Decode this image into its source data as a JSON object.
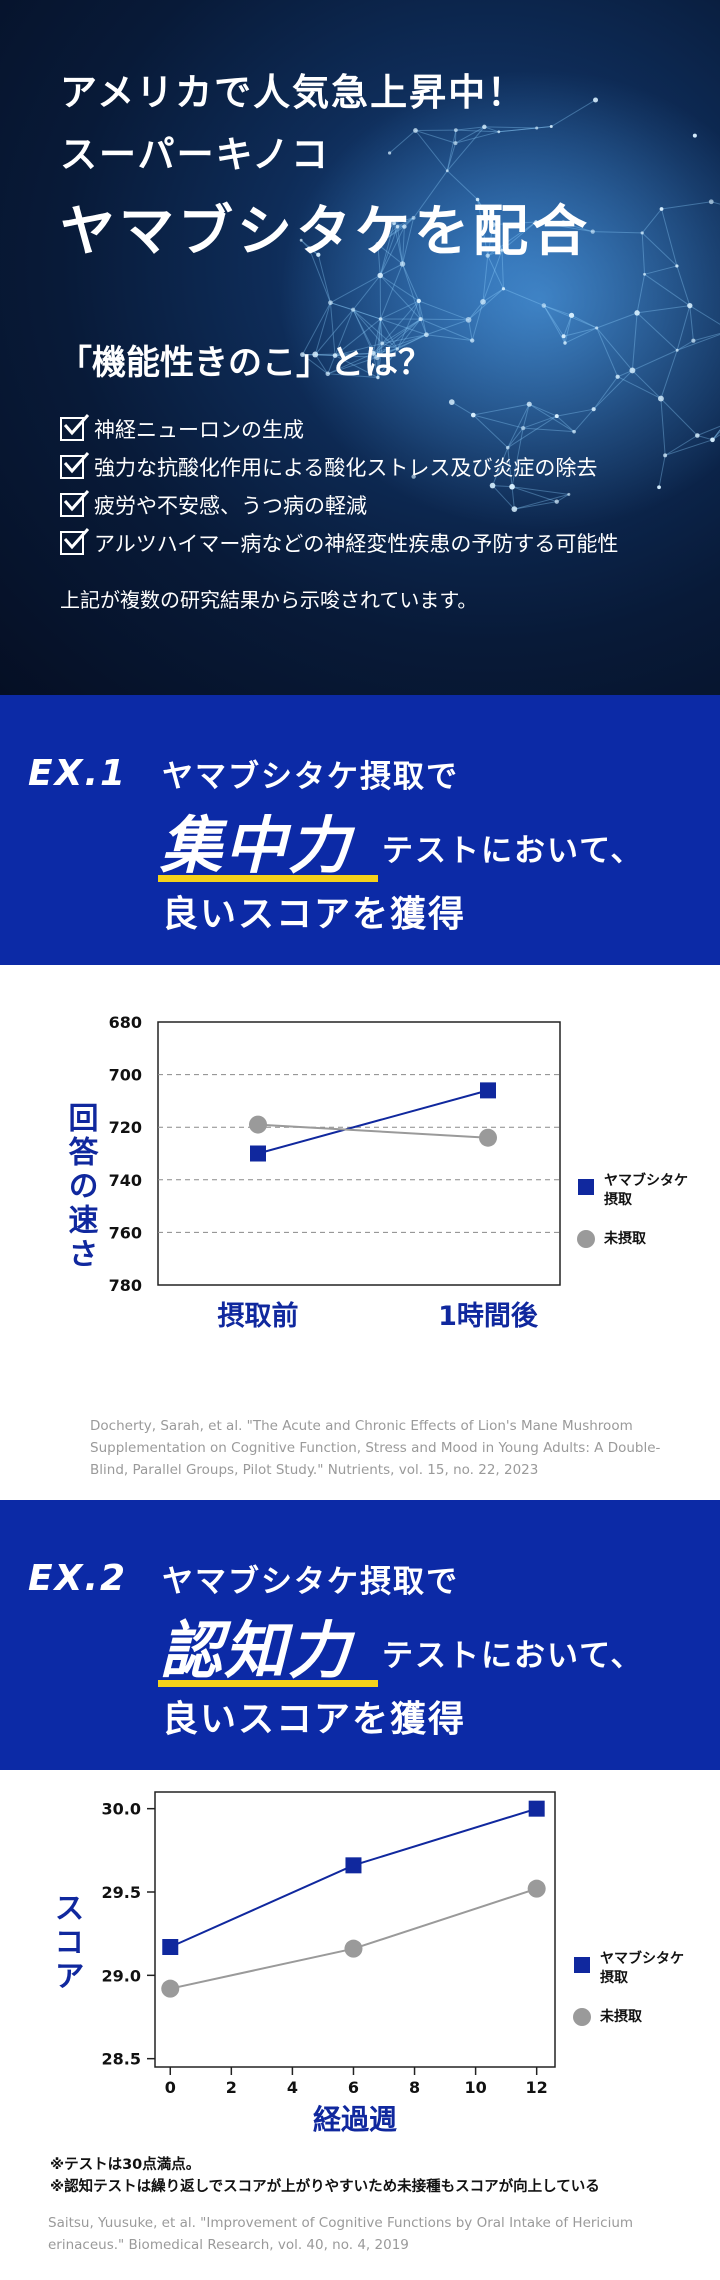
{
  "hero": {
    "line1": "アメリカで人気急上昇中！",
    "line2": "スーパーキノコ",
    "line3": "ヤマブシタケを配合",
    "question": "「機能性きのこ」とは？",
    "checks": [
      "神経ニューロンの生成",
      "強力な抗酸化作用による酸化ストレス及び炎症の除去",
      "疲労や不安感、うつ病の軽減",
      "アルツハイマー病などの神経変性疾患の予防する可能性"
    ],
    "note": "上記が複数の研究結果から示唆されています。"
  },
  "ex1": {
    "label": "EX.1",
    "sub": "ヤマブシタケ摂取で",
    "big": "集中力",
    "tail": "テストにおいて、",
    "last": "良いスコアを獲得"
  },
  "ex2": {
    "label": "EX.2",
    "sub": "ヤマブシタケ摂取で",
    "big": "認知力",
    "tail": "テストにおいて、",
    "last": "良いスコアを獲得"
  },
  "colors": {
    "brand_blue": "#0c2aa6",
    "series_blue": "#10289e",
    "series_gray": "#9a9a9a",
    "underline": "#f5d21a"
  },
  "chart_data": [
    {
      "type": "line",
      "categories": [
        "摂取前",
        "1時間後"
      ],
      "ylabel": "回答の速さ",
      "ylim": [
        680,
        780
      ],
      "y_inverted": true,
      "yticks": [
        680,
        700,
        720,
        740,
        760,
        780
      ],
      "grid": "dashed-horizontal",
      "legend_position": "right",
      "series": [
        {
          "name": "ヤマブシタケ摂取",
          "values": [
            730,
            706
          ],
          "marker": "square"
        },
        {
          "name": "未摂取",
          "values": [
            719,
            724
          ],
          "marker": "circle"
        }
      ],
      "citation": "Docherty, Sarah, et al. \"The Acute and Chronic Effects of Lion's Mane Mushroom Supplementation on Cognitive Function, Stress and Mood in Young Adults: A Double-Blind, Parallel Groups, Pilot Study.\" Nutrients, vol. 15, no. 22, 2023"
    },
    {
      "type": "line",
      "xlabel": "経過週",
      "ylabel": "スコア",
      "x": [
        0,
        6,
        12
      ],
      "xticks": [
        0,
        2,
        4,
        6,
        8,
        10,
        12
      ],
      "xlim": [
        -0.5,
        12.6
      ],
      "ylim": [
        28.45,
        30.1
      ],
      "yticks": [
        28.5,
        29.0,
        29.5,
        30.0
      ],
      "legend_position": "right",
      "series": [
        {
          "name": "ヤマブシタケ摂取",
          "values": [
            29.17,
            29.66,
            30.0
          ],
          "marker": "square"
        },
        {
          "name": "未摂取",
          "values": [
            28.92,
            29.16,
            29.52
          ],
          "marker": "circle"
        }
      ],
      "footnotes": [
        "※テストは30点満点。",
        "※認知テストは繰り返しでスコアが上がりやすいため未接種もスコアが向上している"
      ],
      "citation": "Saitsu, Yuusuke, et al. \"Improvement of Cognitive Functions by Oral Intake of Hericium erinaceus.\" Biomedical Research, vol. 40, no. 4, 2019"
    }
  ]
}
